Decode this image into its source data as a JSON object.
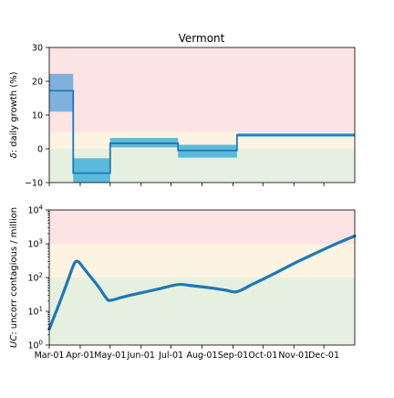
{
  "chart_data": [
    {
      "type": "line",
      "title": "Vermont",
      "ylabel_symbol": "δ",
      "ylabel_text": ": daily growth (%)",
      "ylim": [
        -10,
        30
      ],
      "yticks": [
        -10,
        0,
        10,
        20,
        30
      ],
      "ytick_labels": [
        "−10",
        "0",
        "10",
        "20",
        "30"
      ],
      "xlim": [
        "2020-03-01",
        "2021-01-01"
      ],
      "zones": [
        {
          "from": 5,
          "to": 30,
          "color": "#fde3e3"
        },
        {
          "from": 0,
          "to": 5,
          "color": "#fdf3e3"
        },
        {
          "from": -10,
          "to": 0,
          "color": "#e6f0e0"
        }
      ],
      "segments": [
        {
          "start": "2020-03-01",
          "end": "2020-03-25",
          "value": 17.2,
          "low": 11,
          "high": 22.2
        },
        {
          "start": "2020-03-25",
          "end": "2020-05-01",
          "value": -7.2,
          "low": -10.5,
          "high": -2.8
        },
        {
          "start": "2020-05-01",
          "end": "2020-07-08",
          "value": 1.6,
          "low": 0.4,
          "high": 3.2
        },
        {
          "start": "2020-07-08",
          "end": "2020-09-05",
          "value": -0.5,
          "low": -2.6,
          "high": 1.2
        },
        {
          "start": "2020-09-05",
          "end": "2021-01-01",
          "value": 4.0,
          "low": 3.6,
          "high": 4.6
        }
      ],
      "colors": {
        "line": "#1f77b4",
        "band_first": "#7fb1dc",
        "band_rest": "#5bbadb"
      }
    },
    {
      "type": "line",
      "ylabel_symbol": "UC",
      "ylabel_text": ": uncorr contagious / million",
      "scale": "log",
      "ylim": [
        1,
        10000
      ],
      "yticks": [
        1,
        10,
        100,
        1000,
        10000
      ],
      "ytick_exponents": [
        "0",
        "1",
        "2",
        "3",
        "4"
      ],
      "xlim": [
        "2020-03-01",
        "2021-01-01"
      ],
      "xticks": [
        "2020-03-01",
        "2020-04-01",
        "2020-05-01",
        "2020-06-01",
        "2020-07-01",
        "2020-08-01",
        "2020-09-01",
        "2020-10-01",
        "2020-11-01",
        "2020-12-01"
      ],
      "xtick_labels": [
        "Mar-01",
        "Apr-01",
        "May-01",
        "Jun-01",
        "Jul-01",
        "Aug-01",
        "Sep-01",
        "Oct-01",
        "Nov-01",
        "Dec-01"
      ],
      "zones": [
        {
          "from": 1000,
          "to": 10000,
          "color": "#fde3e3"
        },
        {
          "from": 100,
          "to": 1000,
          "color": "#fdf3e3"
        },
        {
          "from": 1,
          "to": 100,
          "color": "#e6f0e0"
        }
      ],
      "points": [
        [
          "2020-03-01",
          3
        ],
        [
          "2020-03-10",
          14
        ],
        [
          "2020-03-18",
          60
        ],
        [
          "2020-03-25",
          220
        ],
        [
          "2020-03-28",
          300
        ],
        [
          "2020-03-31",
          280
        ],
        [
          "2020-04-05",
          180
        ],
        [
          "2020-04-12",
          100
        ],
        [
          "2020-04-20",
          50
        ],
        [
          "2020-04-27",
          25
        ],
        [
          "2020-05-01",
          21
        ],
        [
          "2020-05-15",
          27
        ],
        [
          "2020-06-01",
          35
        ],
        [
          "2020-06-20",
          47
        ],
        [
          "2020-07-08",
          62
        ],
        [
          "2020-07-20",
          58
        ],
        [
          "2020-08-10",
          49
        ],
        [
          "2020-08-25",
          42
        ],
        [
          "2020-09-05",
          38
        ],
        [
          "2020-09-20",
          62
        ],
        [
          "2020-10-10",
          120
        ],
        [
          "2020-11-01",
          260
        ],
        [
          "2020-11-20",
          480
        ],
        [
          "2020-12-10",
          900
        ],
        [
          "2021-01-01",
          1700
        ]
      ],
      "colors": {
        "line": "#1f77b4"
      }
    }
  ]
}
